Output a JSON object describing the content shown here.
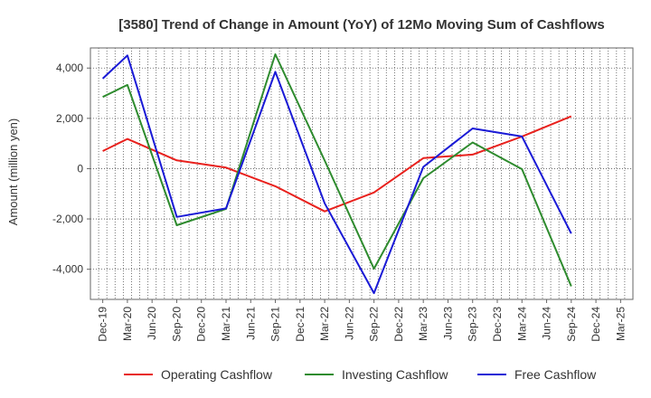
{
  "chart_data": {
    "type": "line",
    "title": "[3580]  Trend of Change in Amount (YoY) of 12Mo Moving Sum of Cashflows",
    "xlabel": "",
    "ylabel": "Amount (million yen)",
    "ylim": [
      -5200,
      4800
    ],
    "yticks": [
      -4000,
      -2000,
      0,
      2000,
      4000
    ],
    "ytick_labels": [
      "-4,000",
      "-2,000",
      "0",
      "2,000",
      "4,000"
    ],
    "categories": [
      "Dec-19",
      "Mar-20",
      "Jun-20",
      "Sep-20",
      "Dec-20",
      "Mar-21",
      "Jun-21",
      "Sep-21",
      "Dec-21",
      "Mar-22",
      "Jun-22",
      "Sep-22",
      "Dec-22",
      "Mar-23",
      "Jun-23",
      "Sep-23",
      "Dec-23",
      "Mar-24",
      "Jun-24",
      "Sep-24",
      "Dec-24",
      "Mar-25"
    ],
    "series": [
      {
        "name": "Operating Cashflow",
        "color": "#e8211d",
        "values": [
          700,
          1180,
          null,
          330,
          null,
          40,
          null,
          -700,
          null,
          -1700,
          null,
          -950,
          null,
          420,
          null,
          560,
          null,
          1280,
          null,
          2080,
          null,
          null
        ]
      },
      {
        "name": "Investing Cashflow",
        "color": "#2e8b2e",
        "values": [
          2850,
          3330,
          null,
          -2250,
          null,
          -1600,
          null,
          4550,
          null,
          320,
          null,
          -3980,
          null,
          -380,
          null,
          1040,
          null,
          -20,
          null,
          -4680,
          null,
          null
        ]
      },
      {
        "name": "Free Cashflow",
        "color": "#1a1ad6",
        "values": [
          3580,
          4500,
          null,
          -1920,
          null,
          -1580,
          null,
          3850,
          null,
          -1380,
          null,
          -4950,
          null,
          70,
          null,
          1600,
          null,
          1280,
          null,
          -2580,
          null,
          null
        ]
      }
    ],
    "legend_position": "bottom"
  }
}
